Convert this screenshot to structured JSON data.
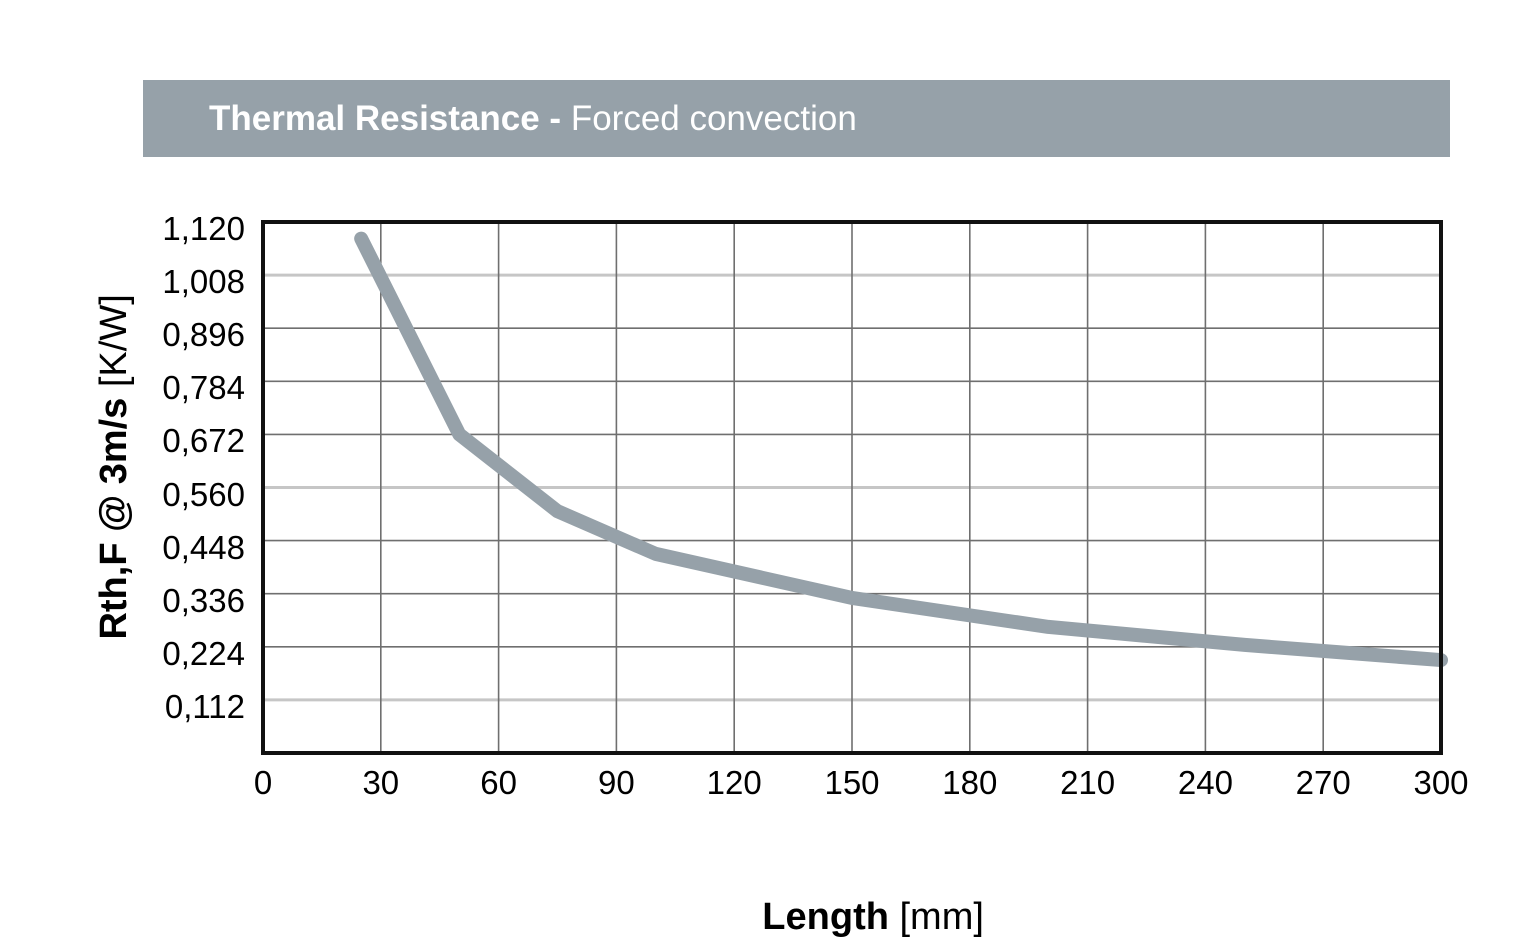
{
  "header": {
    "title_bold": "Thermal Resistance - ",
    "title_regular": "Forced convection"
  },
  "y_axis": {
    "title_bold": "Rth,F @ 3m/s ",
    "title_regular": "[K/W]",
    "tick_labels": [
      "1,120",
      "1,008",
      "0,896",
      "0,784",
      "0,672",
      "0,560",
      "0,448",
      "0,336",
      "0,224",
      "0,112"
    ]
  },
  "x_axis": {
    "title_bold": "Length ",
    "title_regular": "[mm]",
    "tick_labels": [
      "0",
      "30",
      "60",
      "90",
      "120",
      "150",
      "180",
      "210",
      "240",
      "270",
      "300"
    ]
  },
  "colors": {
    "header_bg": "#96a1a9",
    "header_text": "#ffffff",
    "curve": "#96a1a9",
    "grid_dark": "#6f6f6f",
    "grid_light": "#c6c6c6",
    "frame": "#111111"
  },
  "chart_data": {
    "type": "line",
    "title": "Thermal Resistance - Forced convection",
    "xlabel": "Length [mm]",
    "ylabel": "Rth,F @ 3m/s [K/W]",
    "x": [
      25,
      50,
      75,
      100,
      150,
      200,
      250,
      300
    ],
    "y": [
      1.085,
      0.672,
      0.51,
      0.42,
      0.327,
      0.266,
      0.228,
      0.196
    ],
    "series_name": "Rth,F @ 3m/s",
    "xlim": [
      0,
      300
    ],
    "ylim": [
      0,
      1.12
    ],
    "x_ticks": [
      0,
      30,
      60,
      90,
      120,
      150,
      180,
      210,
      240,
      270,
      300
    ],
    "y_ticks": [
      1.12,
      1.008,
      0.896,
      0.784,
      0.672,
      0.56,
      0.448,
      0.336,
      0.224,
      0.112
    ],
    "light_gridline_values": [
      1.008,
      0.56,
      0.112
    ],
    "grid": true,
    "legend": false,
    "line_width": 14
  }
}
